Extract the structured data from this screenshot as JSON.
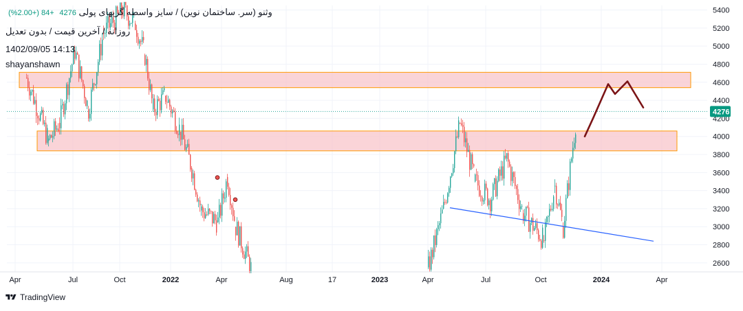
{
  "legend": {
    "title": "وثنو (سر. ساختمان نوین) / سایز واسطه گریهای پولی",
    "last_value": "4276",
    "change": "+84 (+2.00%)",
    "subtitle": "روزانه / آخرین قیمت / بدون تعدیل",
    "datetime": "1402/09/05 14:13",
    "author": "shayanshawn"
  },
  "brand": {
    "name": "TradingView",
    "logo_icon": "tradingview-logo-icon"
  },
  "colors": {
    "up": "#26a69a",
    "down": "#ef5350",
    "zone_fill": "#f8c5cb",
    "zone_border": "#ff9800",
    "trendline": "#2962ff",
    "projection": "#7b1416",
    "price_badge": "#089981"
  },
  "chart_data": {
    "type": "candlestick",
    "price_axis": {
      "min": 2500,
      "max": 5450,
      "ticks": [
        2600,
        2800,
        3000,
        3200,
        3400,
        3600,
        3800,
        4000,
        4200,
        4400,
        4600,
        4800,
        5000,
        5200,
        5400
      ]
    },
    "current_price": 4276,
    "time_axis_labels": [
      "Apr",
      "Jul",
      "Oct",
      "2022",
      "Apr",
      "Aug",
      "17",
      "2023",
      "Apr",
      "Jul",
      "Oct",
      "2024",
      "Apr"
    ],
    "price_path": [
      {
        "t": "2021-04",
        "price": 4650
      },
      {
        "t": "2021-05",
        "price": 3950
      },
      {
        "t": "2021-06",
        "price": 4150
      },
      {
        "t": "2021-06b",
        "price": 4950
      },
      {
        "t": "2021-07",
        "price": 4300
      },
      {
        "t": "2021-08",
        "price": 5150
      },
      {
        "t": "2021-09",
        "price": 5400
      },
      {
        "t": "2021-10",
        "price": 5250
      },
      {
        "t": "2021-11",
        "price": 4900
      },
      {
        "t": "2021-12",
        "price": 4300
      },
      {
        "t": "2022-01",
        "price": 4450
      },
      {
        "t": "2022-01b",
        "price": 4050
      },
      {
        "t": "2022-02",
        "price": 3650
      },
      {
        "t": "2022-03",
        "price": 3180
      },
      {
        "t": "2022-04",
        "price": 3050
      },
      {
        "t": "2022-04b",
        "price": 3550
      },
      {
        "t": "2022-05",
        "price": 3000
      },
      {
        "t": "2022-05b",
        "price": 2500
      },
      {
        "t": "2023-04",
        "price": 2550
      },
      {
        "t": "2023-05",
        "price": 3200
      },
      {
        "t": "2023-05b",
        "price": 4150
      },
      {
        "t": "2023-06",
        "price": 3500
      },
      {
        "t": "2023-07",
        "price": 3300
      },
      {
        "t": "2023-08",
        "price": 3750
      },
      {
        "t": "2023-09",
        "price": 3150
      },
      {
        "t": "2023-10",
        "price": 2850
      },
      {
        "t": "2023-10b",
        "price": 3450
      },
      {
        "t": "2023-11",
        "price": 3000
      },
      {
        "t": "2023-11b",
        "price": 4276
      }
    ],
    "resistance_zones": [
      {
        "from": 4540,
        "to": 4710
      },
      {
        "from": 3840,
        "to": 4060
      }
    ],
    "trendline": [
      {
        "t": "2023-05",
        "price": 3210
      },
      {
        "t": "2024-04",
        "price": 2840
      }
    ],
    "markers": [
      {
        "t": "2022-04",
        "price": 3545
      },
      {
        "t": "2022-05",
        "price": 3300
      }
    ],
    "projection_path": [
      4000,
      4200,
      4580,
      4470,
      4610,
      4320
    ]
  }
}
